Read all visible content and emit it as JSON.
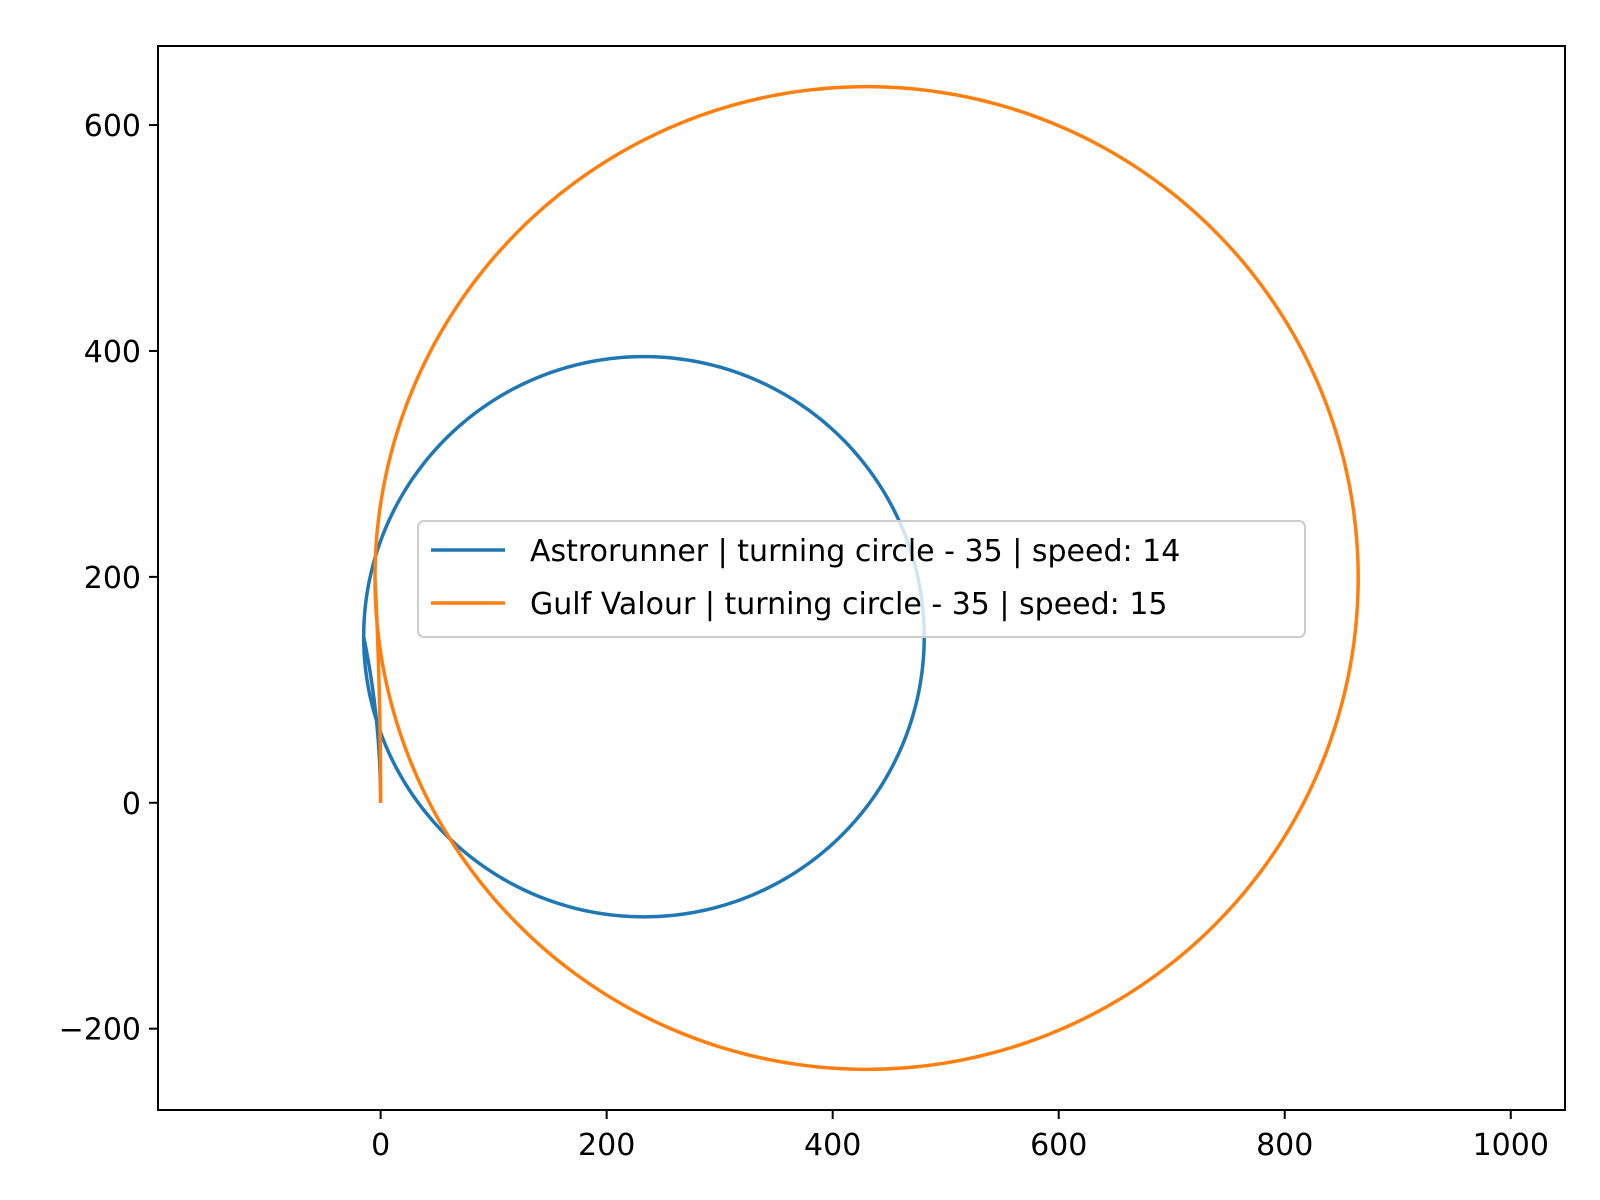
{
  "chart_data": {
    "type": "line",
    "title": "",
    "xlabel": "",
    "ylabel": "",
    "xlim": [
      -197,
      1048
    ],
    "ylim": [
      -272,
      670
    ],
    "xticks": [
      0,
      200,
      400,
      600,
      800,
      1000
    ],
    "yticks": [
      -200,
      0,
      200,
      400,
      600
    ],
    "x_tick_labels": [
      "0",
      "200",
      "400",
      "600",
      "800",
      "1000"
    ],
    "y_tick_labels": [
      "−200",
      "0",
      "200",
      "400",
      "600"
    ],
    "grid": false,
    "legend_position": "center",
    "series": [
      {
        "name": "Astrorunner | turning circle - 35 | speed: 14",
        "color": "#1f77b4",
        "shape": "turning circle from origin",
        "start": [
          0,
          0
        ],
        "center": [
          233,
          147
        ],
        "radius": 248,
        "extent_x": [
          -15,
          481
        ],
        "extent_y": [
          -101,
          395
        ]
      },
      {
        "name": "Gulf Valour | turning circle - 35 | speed: 15",
        "color": "#ff7f0e",
        "shape": "turning circle from origin",
        "start": [
          0,
          0
        ],
        "center": [
          430,
          199
        ],
        "radius": 435,
        "extent_x": [
          -5,
          865
        ],
        "extent_y": [
          -236,
          634
        ]
      }
    ]
  }
}
